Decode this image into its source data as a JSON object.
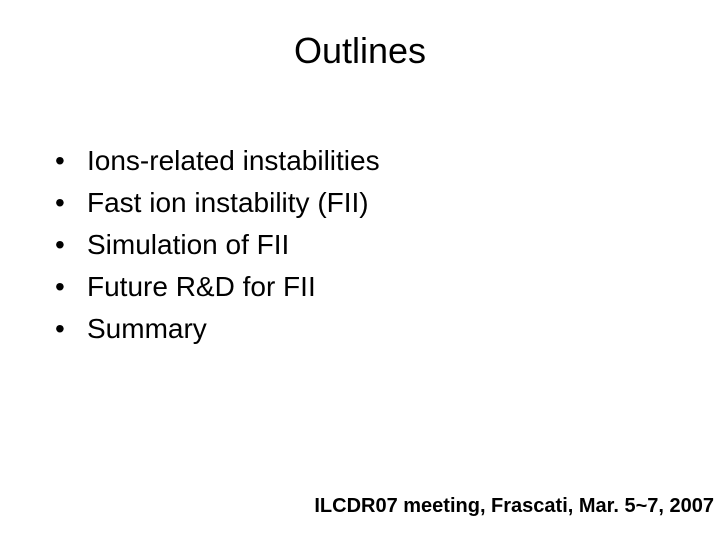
{
  "title": "Outlines",
  "title_fontsize": 36,
  "title_color": "#000000",
  "bullets": [
    "Ions-related instabilities",
    "Fast ion instability (FII)",
    "Simulation of FII",
    "Future R&D for FII",
    "Summary"
  ],
  "bullet_fontsize": 28,
  "bullet_color": "#000000",
  "bullet_marker": "•",
  "footer": "ILCDR07 meeting, Frascati, Mar. 5~7, 2007",
  "footer_fontsize": 20,
  "footer_weight": "700",
  "footer_color": "#000000",
  "background_color": "#ffffff",
  "font_family": "Arial, Helvetica, sans-serif",
  "slide_width": 720,
  "slide_height": 540
}
